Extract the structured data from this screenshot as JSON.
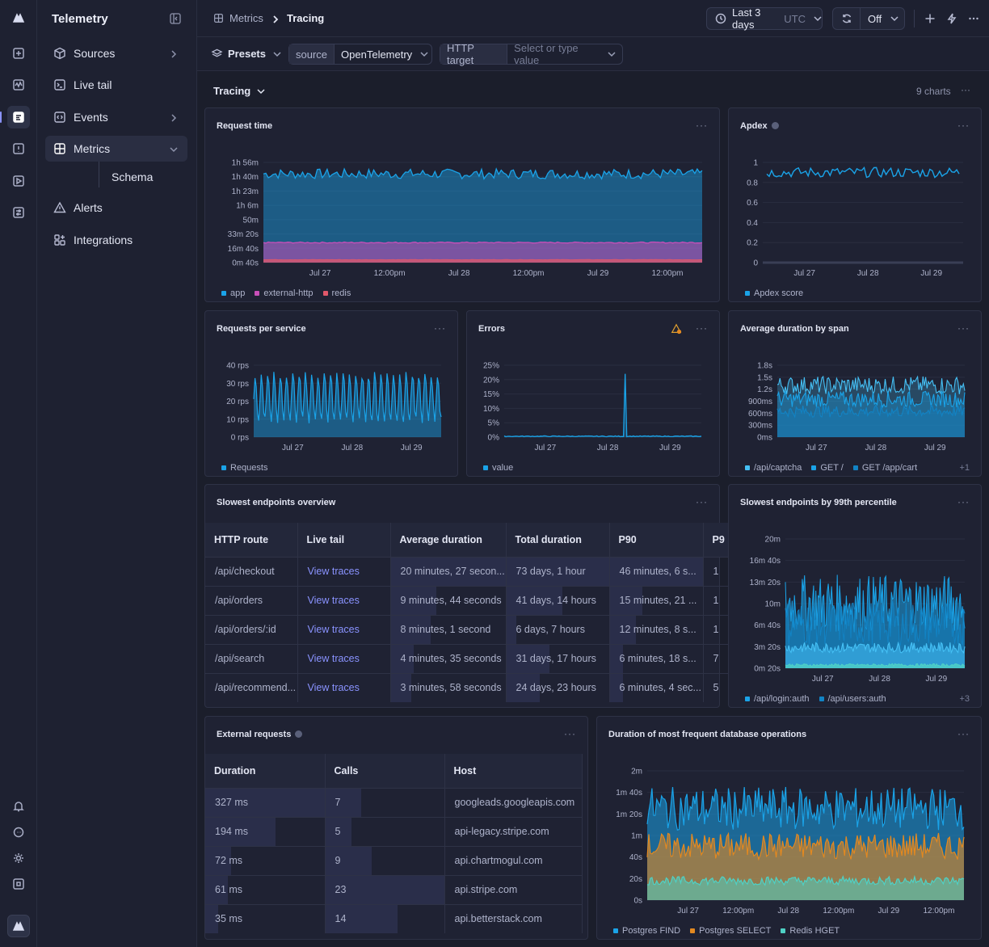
{
  "app": {
    "name": "Telemetry"
  },
  "rail": {
    "icons": [
      "logo-icon",
      "plus-square-icon",
      "activity-icon",
      "logs-icon",
      "alert-square-icon",
      "play-square-icon",
      "sliders-icon",
      "bell-icon",
      "chat-icon",
      "sun-icon",
      "command-icon",
      "app-badge-icon"
    ]
  },
  "sidebar": {
    "items": [
      {
        "label": "Sources",
        "icon": "cube-icon"
      },
      {
        "label": "Live tail",
        "icon": "terminal-icon"
      },
      {
        "label": "Events",
        "icon": "code-icon"
      },
      {
        "label": "Metrics",
        "icon": "grid-icon"
      },
      {
        "label": "Alerts",
        "icon": "warning-icon"
      },
      {
        "label": "Integrations",
        "icon": "integrations-icon"
      }
    ],
    "sub_item": "Schema"
  },
  "topbar": {
    "breadcrumb": [
      "Metrics",
      "Tracing"
    ],
    "time_range": "Last 3 days",
    "timezone": "UTC",
    "refresh": "Off"
  },
  "filters": {
    "presets": "Presets",
    "source_key": "source",
    "source_value": "OpenTelemetry",
    "http_key": "HTTP target",
    "http_placeholder": "Select or type value"
  },
  "section": {
    "title": "Tracing",
    "meta": "9 charts"
  },
  "colors": {
    "blue": "#1aa3e8",
    "pink": "#c84fb8",
    "red": "#e0586a",
    "orange": "#e38920",
    "teal": "#4fd1c5",
    "light_blue": "#45c0f5",
    "accent": "#8a93ff"
  },
  "panels": {
    "request_time": {
      "title": "Request time",
      "legend": [
        "app",
        "external-http",
        "redis"
      ]
    },
    "apdex": {
      "title": "Apdex",
      "legend": [
        "Apdex score"
      ]
    },
    "rps": {
      "title": "Requests per service",
      "legend": [
        "Requests"
      ]
    },
    "errors": {
      "title": "Errors",
      "legend": [
        "value"
      ]
    },
    "avg_span": {
      "title": "Average duration by span",
      "legend": [
        "/api/captcha",
        "GET /",
        "GET /app/cart"
      ],
      "more": "+1"
    },
    "slowest": {
      "title": "Slowest endpoints overview"
    },
    "p99": {
      "title": "Slowest endpoints by 99th percentile",
      "legend": [
        "/api/login:auth",
        "/api/users:auth"
      ],
      "more": "+3"
    },
    "external": {
      "title": "External requests"
    },
    "db": {
      "title": "Duration of most frequent database operations",
      "legend": [
        "Postgres FIND",
        "Postgres SELECT",
        "Redis HGET"
      ]
    }
  },
  "slowest_table": {
    "columns": [
      "HTTP route",
      "Live tail",
      "Average duration",
      "Total duration",
      "P90",
      "P9"
    ],
    "rows": [
      [
        "/api/checkout",
        "View traces",
        "20 minutes, 27 secon...",
        "73 days, 1 hour",
        "46 minutes, 6 s...",
        "1"
      ],
      [
        "/api/orders",
        "View traces",
        "9 minutes, 44 seconds",
        "41 days, 14 hours",
        "15 minutes, 21 ...",
        "1"
      ],
      [
        "/api/orders/:id",
        "View traces",
        "8 minutes, 1 second",
        "6 days, 7 hours",
        "12 minutes, 8 s...",
        "1"
      ],
      [
        "/api/search",
        "View traces",
        "4 minutes, 35 seconds",
        "31 days, 17 hours",
        "6 minutes, 18 s...",
        "7"
      ],
      [
        "/api/recommend...",
        "View traces",
        "3 minutes, 58 seconds",
        "24 days, 23 hours",
        "6 minutes, 4 sec...",
        "5"
      ]
    ]
  },
  "external_table": {
    "columns": [
      "Duration",
      "Calls",
      "Host"
    ],
    "rows": [
      [
        "327 ms",
        "7",
        "googleads.googleapis.com"
      ],
      [
        "194 ms",
        "5",
        "api-legacy.stripe.com"
      ],
      [
        "72 ms",
        "9",
        "api.chartmogul.com"
      ],
      [
        "61 ms",
        "23",
        "api.stripe.com"
      ],
      [
        "35 ms",
        "14",
        "api.betterstack.com"
      ]
    ]
  },
  "chart_data": [
    {
      "type": "area",
      "title": "Request time",
      "y_ticks": [
        "0m 40s",
        "16m 40s",
        "33m 20s",
        "50m",
        "1h 6m",
        "1h 23m",
        "1h 40m",
        "1h 56m"
      ],
      "x_ticks": [
        "Jul 27",
        "12:00pm",
        "Jul 28",
        "12:00pm",
        "Jul 29",
        "12:00pm"
      ],
      "series": [
        {
          "name": "app",
          "level_seconds": 6200
        },
        {
          "name": "external-http",
          "level_seconds": 1400
        },
        {
          "name": "redis",
          "level_seconds": 200
        }
      ]
    },
    {
      "type": "line",
      "title": "Apdex",
      "y_ticks": [
        "0",
        "0.2",
        "0.4",
        "0.6",
        "0.8",
        "1"
      ],
      "x_ticks": [
        "Jul 27",
        "Jul 28",
        "Jul 29"
      ],
      "series": [
        {
          "name": "Apdex score",
          "level": 0.9
        }
      ]
    },
    {
      "type": "area",
      "title": "Requests per service",
      "y_ticks": [
        "0 rps",
        "10 rps",
        "20 rps",
        "30 rps",
        "40 rps"
      ],
      "x_ticks": [
        "Jul 27",
        "Jul 28",
        "Jul 29"
      ],
      "series": [
        {
          "name": "Requests",
          "range": [
            8,
            36
          ]
        }
      ]
    },
    {
      "type": "line",
      "title": "Errors",
      "y_ticks": [
        "0%",
        "5%",
        "10%",
        "15%",
        "20%",
        "25%"
      ],
      "x_ticks": [
        "Jul 27",
        "Jul 28",
        "Jul 29"
      ],
      "series": [
        {
          "name": "value",
          "baseline": 0.3,
          "spike": 22
        }
      ]
    },
    {
      "type": "area",
      "title": "Average duration by span",
      "y_ticks": [
        "0ms",
        "300ms",
        "600ms",
        "900ms",
        "1.2s",
        "1.5s",
        "1.8s"
      ],
      "x_ticks": [
        "Jul 27",
        "Jul 28",
        "Jul 29"
      ]
    },
    {
      "type": "area",
      "title": "Slowest endpoints by 99th percentile",
      "y_ticks": [
        "0m 20s",
        "3m 20s",
        "6m 40s",
        "10m",
        "13m 20s",
        "16m 40s",
        "20m"
      ],
      "x_ticks": [
        "Jul 27",
        "Jul 28",
        "Jul 29"
      ]
    },
    {
      "type": "area",
      "title": "Duration of most frequent database operations",
      "y_ticks": [
        "0s",
        "20s",
        "40s",
        "1m",
        "1m 20s",
        "1m 40s",
        "2m"
      ],
      "x_ticks": [
        "Jul 27",
        "12:00pm",
        "Jul 28",
        "12:00pm",
        "Jul 29",
        "12:00pm"
      ],
      "series": [
        {
          "name": "Postgres FIND",
          "level_seconds": 85
        },
        {
          "name": "Postgres SELECT",
          "level_seconds": 50
        },
        {
          "name": "Redis HGET",
          "level_seconds": 18
        }
      ]
    }
  ]
}
